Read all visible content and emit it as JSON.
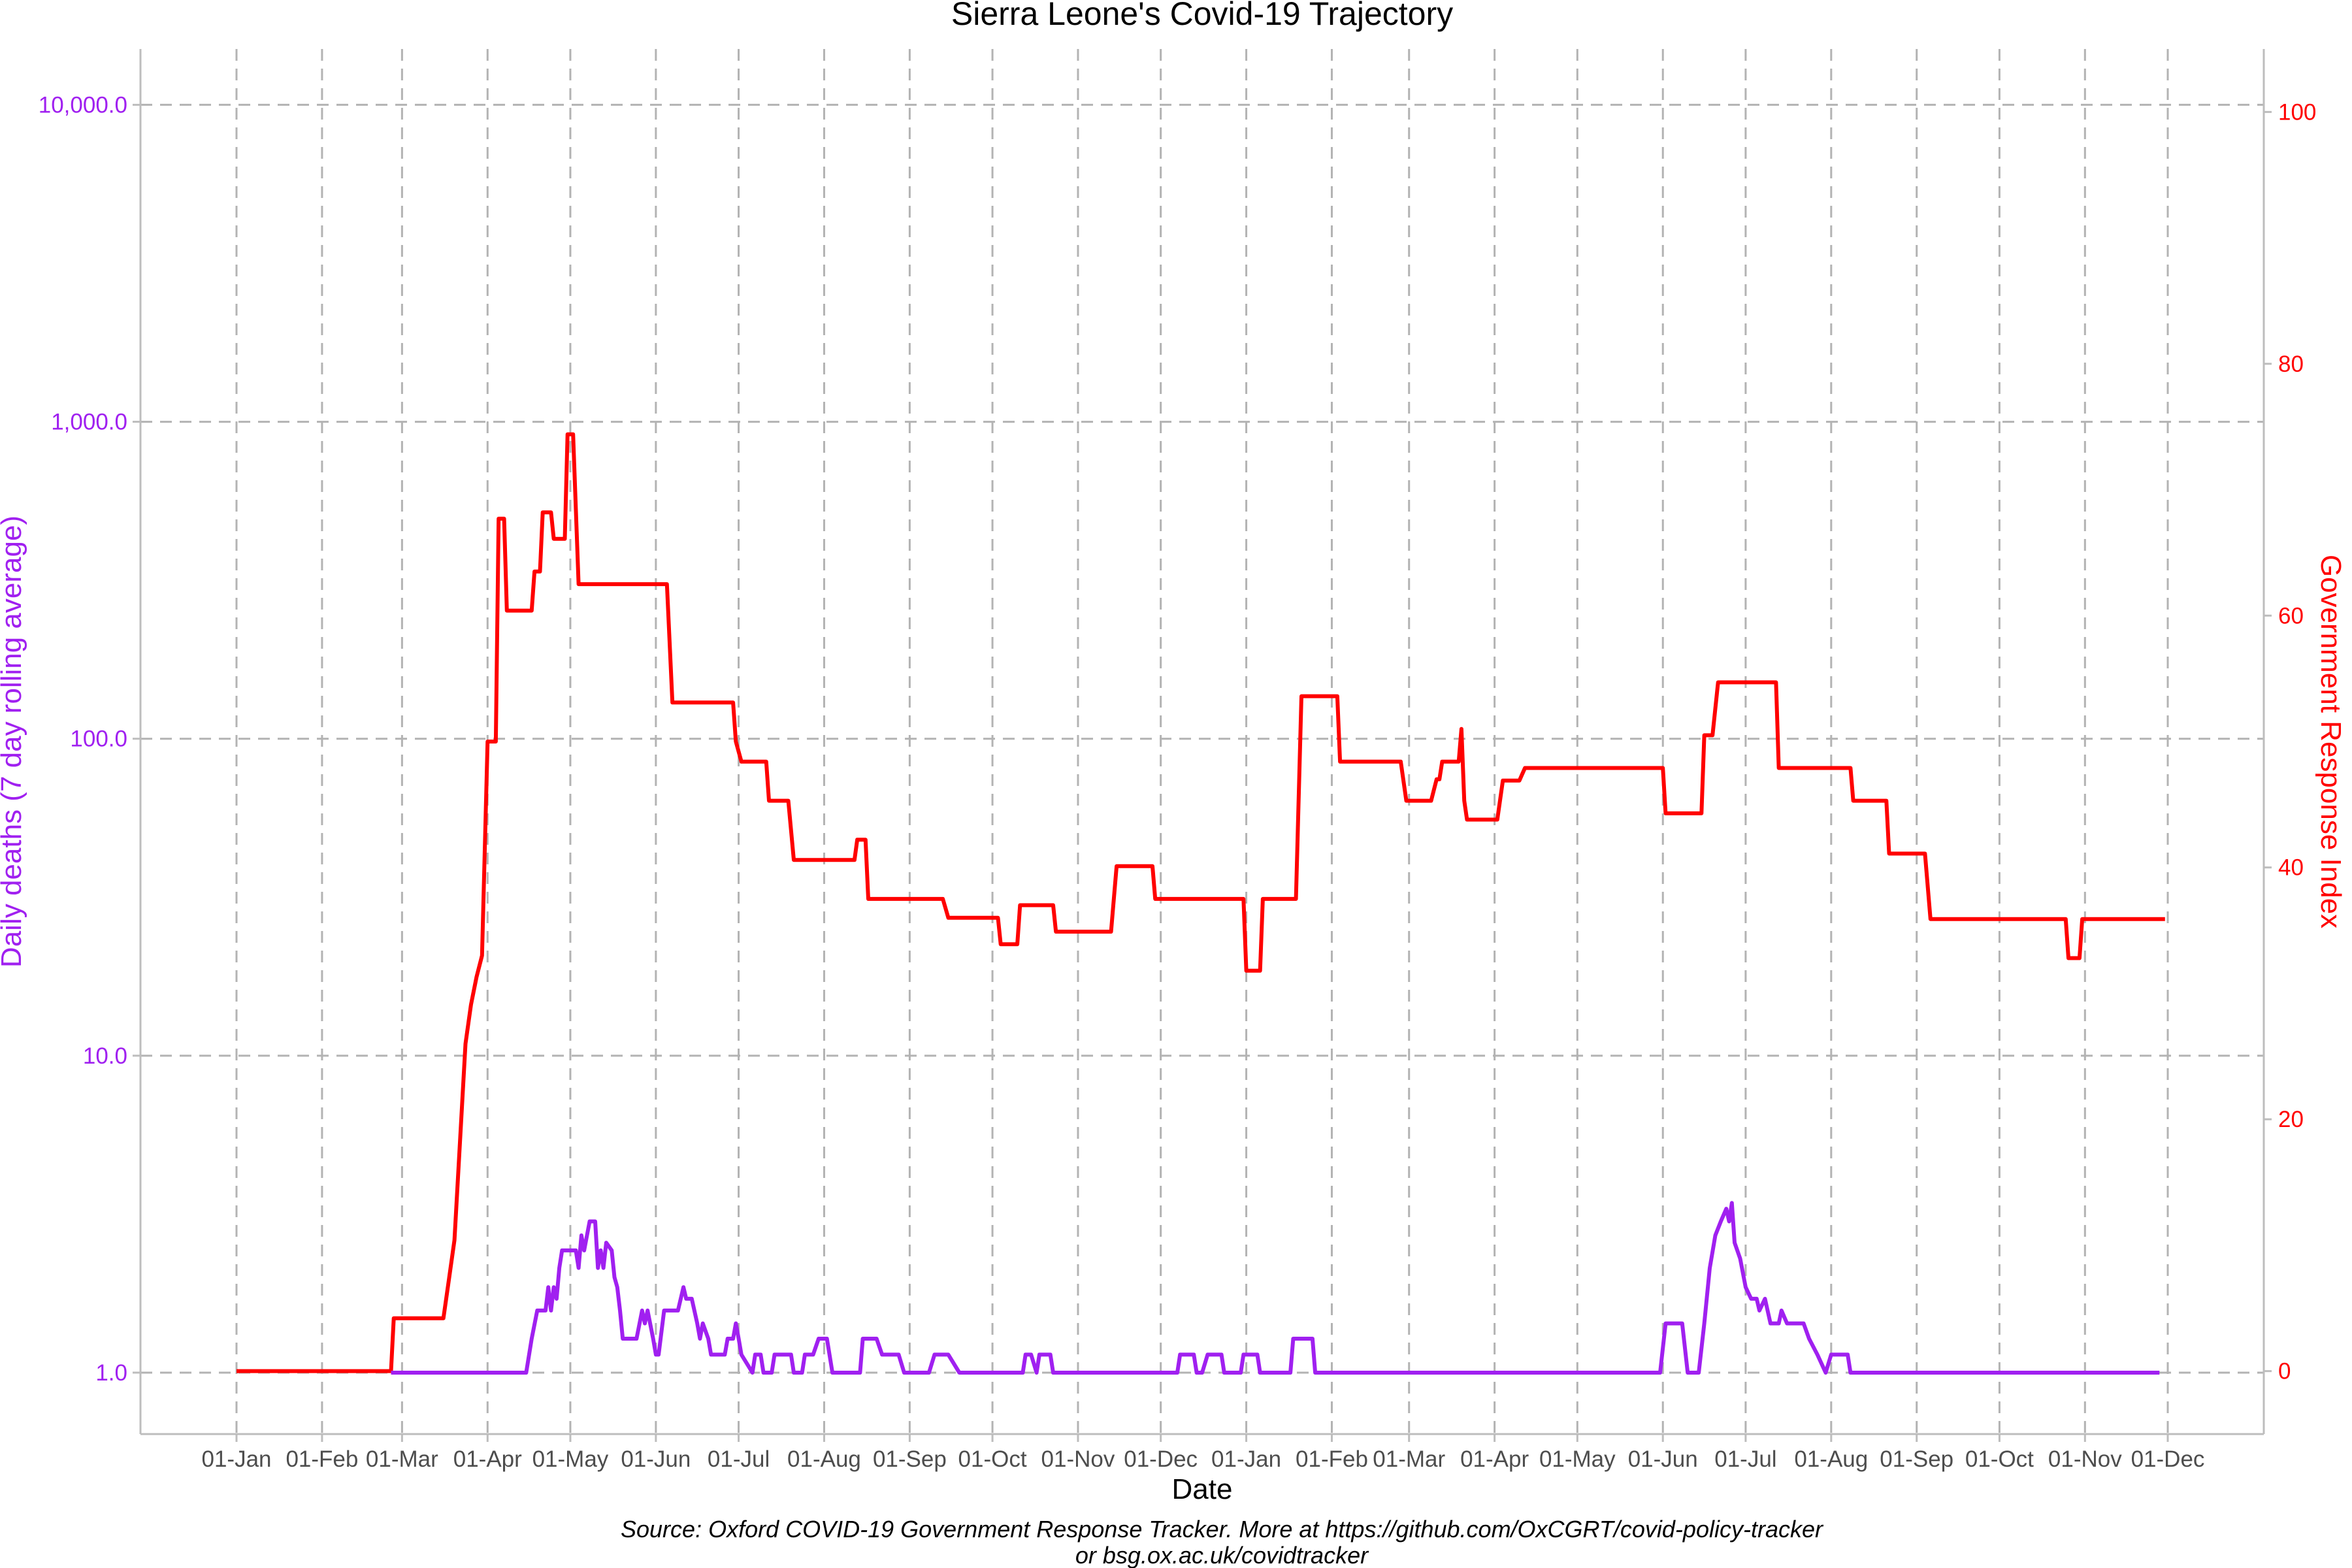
{
  "chart_data": {
    "type": "line",
    "title": "Sierra Leone's Covid-19 Trajectory",
    "xlabel": "Date",
    "ylabel_left": "Daily deaths (7 day rolling average)",
    "ylabel_right": "Government Response Index",
    "caption_line1": "Source: Oxford COVID-19 Government Response Tracker. More at https://github.com/OxCGRT/covid-policy-tracker",
    "caption_line2": "or bsg.ox.ac.uk/covidtracker",
    "x_range": [
      "2020-01-01",
      "2021-12-01"
    ],
    "x_ticks": [
      {
        "date": "2020-01-01",
        "label": "01-Jan"
      },
      {
        "date": "2020-02-01",
        "label": "01-Feb"
      },
      {
        "date": "2020-03-01",
        "label": "01-Mar"
      },
      {
        "date": "2020-04-01",
        "label": "01-Apr"
      },
      {
        "date": "2020-05-01",
        "label": "01-May"
      },
      {
        "date": "2020-06-01",
        "label": "01-Jun"
      },
      {
        "date": "2020-07-01",
        "label": "01-Jul"
      },
      {
        "date": "2020-08-01",
        "label": "01-Aug"
      },
      {
        "date": "2020-09-01",
        "label": "01-Sep"
      },
      {
        "date": "2020-10-01",
        "label": "01-Oct"
      },
      {
        "date": "2020-11-01",
        "label": "01-Nov"
      },
      {
        "date": "2020-12-01",
        "label": "01-Dec"
      },
      {
        "date": "2021-01-01",
        "label": "01-Jan"
      },
      {
        "date": "2021-02-01",
        "label": "01-Feb"
      },
      {
        "date": "2021-03-01",
        "label": "01-Mar"
      },
      {
        "date": "2021-04-01",
        "label": "01-Apr"
      },
      {
        "date": "2021-05-01",
        "label": "01-May"
      },
      {
        "date": "2021-06-01",
        "label": "01-Jun"
      },
      {
        "date": "2021-07-01",
        "label": "01-Jul"
      },
      {
        "date": "2021-08-01",
        "label": "01-Aug"
      },
      {
        "date": "2021-09-01",
        "label": "01-Sep"
      },
      {
        "date": "2021-10-01",
        "label": "01-Oct"
      },
      {
        "date": "2021-11-01",
        "label": "01-Nov"
      },
      {
        "date": "2021-12-01",
        "label": "01-Dec"
      }
    ],
    "y_left": {
      "scale": "log10",
      "range": [
        0.64,
        15000
      ],
      "ticks": [
        {
          "value": 1,
          "label": "1.0"
        },
        {
          "value": 10,
          "label": "10.0"
        },
        {
          "value": 100,
          "label": "100.0"
        },
        {
          "value": 1000,
          "label": "1,000.0"
        },
        {
          "value": 10000,
          "label": "10,000.0"
        }
      ],
      "color": "#a020f0"
    },
    "y_right": {
      "scale": "linear",
      "range": [
        -5,
        105
      ],
      "ticks": [
        0,
        20,
        40,
        60,
        80,
        100
      ],
      "color": "#ff0000"
    },
    "grid": true,
    "series": [
      {
        "axis": "right",
        "color": "#ff0000",
        "points": [
          [
            "2020-01-01",
            0
          ],
          [
            "2020-02-26",
            0
          ],
          [
            "2020-02-27",
            4.2
          ],
          [
            "2020-03-16",
            4.2
          ],
          [
            "2020-03-18",
            7.3
          ],
          [
            "2020-03-20",
            10.4
          ],
          [
            "2020-03-24",
            26.0
          ],
          [
            "2020-03-26",
            29.1
          ],
          [
            "2020-03-28",
            31.3
          ],
          [
            "2020-03-30",
            33.0
          ],
          [
            "2020-04-01",
            50.0
          ],
          [
            "2020-04-04",
            50.0
          ],
          [
            "2020-04-05",
            67.7
          ],
          [
            "2020-04-07",
            67.7
          ],
          [
            "2020-04-08",
            60.4
          ],
          [
            "2020-04-17",
            60.4
          ],
          [
            "2020-04-18",
            63.5
          ],
          [
            "2020-04-20",
            63.5
          ],
          [
            "2020-04-21",
            68.2
          ],
          [
            "2020-04-24",
            68.2
          ],
          [
            "2020-04-25",
            66.1
          ],
          [
            "2020-04-29",
            66.1
          ],
          [
            "2020-04-30",
            74.4
          ],
          [
            "2020-05-02",
            74.4
          ],
          [
            "2020-05-04",
            62.5
          ],
          [
            "2020-06-05",
            62.5
          ],
          [
            "2020-06-07",
            53.1
          ],
          [
            "2020-06-29",
            53.1
          ],
          [
            "2020-06-30",
            50.0
          ],
          [
            "2020-07-02",
            48.4
          ],
          [
            "2020-07-11",
            48.4
          ],
          [
            "2020-07-12",
            45.3
          ],
          [
            "2020-07-19",
            45.3
          ],
          [
            "2020-07-21",
            40.6
          ],
          [
            "2020-08-12",
            40.6
          ],
          [
            "2020-08-13",
            42.2
          ],
          [
            "2020-08-16",
            42.2
          ],
          [
            "2020-08-17",
            37.5
          ],
          [
            "2020-09-13",
            37.5
          ],
          [
            "2020-09-15",
            36.0
          ],
          [
            "2020-10-03",
            36.0
          ],
          [
            "2020-10-04",
            33.9
          ],
          [
            "2020-10-10",
            33.9
          ],
          [
            "2020-10-11",
            37.0
          ],
          [
            "2020-10-23",
            37.0
          ],
          [
            "2020-10-24",
            34.9
          ],
          [
            "2020-11-13",
            34.9
          ],
          [
            "2020-11-15",
            40.1
          ],
          [
            "2020-11-28",
            40.1
          ],
          [
            "2020-11-29",
            37.5
          ],
          [
            "2020-12-31",
            37.5
          ],
          [
            "2021-01-01",
            31.8
          ],
          [
            "2021-01-06",
            31.8
          ],
          [
            "2021-01-07",
            37.5
          ],
          [
            "2021-01-19",
            37.5
          ],
          [
            "2021-01-21",
            53.6
          ],
          [
            "2021-02-03",
            53.6
          ],
          [
            "2021-02-04",
            48.4
          ],
          [
            "2021-02-26",
            48.4
          ],
          [
            "2021-02-28",
            45.3
          ],
          [
            "2021-03-09",
            45.3
          ],
          [
            "2021-03-11",
            47.0
          ],
          [
            "2021-03-12",
            47.0
          ],
          [
            "2021-03-13",
            48.4
          ],
          [
            "2021-03-19",
            48.4
          ],
          [
            "2021-03-20",
            51.0
          ],
          [
            "2021-03-21",
            45.3
          ],
          [
            "2021-03-22",
            43.8
          ],
          [
            "2021-04-02",
            43.8
          ],
          [
            "2021-04-04",
            46.9
          ],
          [
            "2021-04-10",
            46.9
          ],
          [
            "2021-04-12",
            47.9
          ],
          [
            "2021-06-01",
            47.9
          ],
          [
            "2021-06-02",
            44.3
          ],
          [
            "2021-06-15",
            44.3
          ],
          [
            "2021-06-16",
            50.5
          ],
          [
            "2021-06-19",
            50.5
          ],
          [
            "2021-06-21",
            54.7
          ],
          [
            "2021-07-12",
            54.7
          ],
          [
            "2021-07-13",
            47.9
          ],
          [
            "2021-08-08",
            47.9
          ],
          [
            "2021-08-09",
            45.3
          ],
          [
            "2021-08-21",
            45.3
          ],
          [
            "2021-08-22",
            41.1
          ],
          [
            "2021-09-04",
            41.1
          ],
          [
            "2021-09-06",
            35.9
          ],
          [
            "2021-10-25",
            35.9
          ],
          [
            "2021-10-26",
            32.8
          ],
          [
            "2021-10-30",
            32.8
          ],
          [
            "2021-10-31",
            35.9
          ],
          [
            "2021-11-30",
            35.9
          ]
        ]
      },
      {
        "axis": "left",
        "color": "#a020f0",
        "points": [
          [
            "2020-02-26",
            1.0
          ],
          [
            "2020-04-15",
            1.0
          ],
          [
            "2020-04-17",
            1.28
          ],
          [
            "2020-04-19",
            1.57
          ],
          [
            "2020-04-22",
            1.57
          ],
          [
            "2020-04-23",
            1.86
          ],
          [
            "2020-04-24",
            1.57
          ],
          [
            "2020-04-25",
            1.86
          ],
          [
            "2020-04-26",
            1.71
          ],
          [
            "2020-04-27",
            2.14
          ],
          [
            "2020-04-28",
            2.43
          ],
          [
            "2020-04-30",
            2.43
          ],
          [
            "2020-05-01",
            2.43
          ],
          [
            "2020-05-03",
            2.43
          ],
          [
            "2020-05-04",
            2.14
          ],
          [
            "2020-05-05",
            2.71
          ],
          [
            "2020-05-06",
            2.43
          ],
          [
            "2020-05-08",
            3.0
          ],
          [
            "2020-05-10",
            3.0
          ],
          [
            "2020-05-11",
            2.14
          ],
          [
            "2020-05-12",
            2.43
          ],
          [
            "2020-05-13",
            2.14
          ],
          [
            "2020-05-14",
            2.57
          ],
          [
            "2020-05-16",
            2.43
          ],
          [
            "2020-05-17",
            2.0
          ],
          [
            "2020-05-18",
            1.86
          ],
          [
            "2020-05-19",
            1.57
          ],
          [
            "2020-05-20",
            1.28
          ],
          [
            "2020-05-25",
            1.28
          ],
          [
            "2020-05-27",
            1.57
          ],
          [
            "2020-05-28",
            1.43
          ],
          [
            "2020-05-29",
            1.57
          ],
          [
            "2020-05-31",
            1.28
          ],
          [
            "2020-06-01",
            1.14
          ],
          [
            "2020-06-02",
            1.14
          ],
          [
            "2020-06-04",
            1.57
          ],
          [
            "2020-06-09",
            1.57
          ],
          [
            "2020-06-11",
            1.86
          ],
          [
            "2020-06-12",
            1.71
          ],
          [
            "2020-06-14",
            1.71
          ],
          [
            "2020-06-16",
            1.43
          ],
          [
            "2020-06-17",
            1.28
          ],
          [
            "2020-06-18",
            1.43
          ],
          [
            "2020-06-20",
            1.28
          ],
          [
            "2020-06-21",
            1.14
          ],
          [
            "2020-06-26",
            1.14
          ],
          [
            "2020-06-27",
            1.28
          ],
          [
            "2020-06-29",
            1.28
          ],
          [
            "2020-06-30",
            1.43
          ],
          [
            "2020-07-01",
            1.28
          ],
          [
            "2020-07-02",
            1.14
          ],
          [
            "2020-07-06",
            1.0
          ],
          [
            "2020-07-07",
            1.14
          ],
          [
            "2020-07-09",
            1.14
          ],
          [
            "2020-07-10",
            1.0
          ],
          [
            "2020-07-13",
            1.0
          ],
          [
            "2020-07-14",
            1.14
          ],
          [
            "2020-07-20",
            1.14
          ],
          [
            "2020-07-21",
            1.0
          ],
          [
            "2020-07-24",
            1.0
          ],
          [
            "2020-07-25",
            1.14
          ],
          [
            "2020-07-28",
            1.14
          ],
          [
            "2020-07-30",
            1.28
          ],
          [
            "2020-08-02",
            1.28
          ],
          [
            "2020-08-04",
            1.0
          ],
          [
            "2020-08-14",
            1.0
          ],
          [
            "2020-08-15",
            1.28
          ],
          [
            "2020-08-20",
            1.28
          ],
          [
            "2020-08-22",
            1.14
          ],
          [
            "2020-08-27",
            1.14
          ],
          [
            "2020-08-28",
            1.14
          ],
          [
            "2020-08-30",
            1.0
          ],
          [
            "2020-09-08",
            1.0
          ],
          [
            "2020-09-10",
            1.14
          ],
          [
            "2020-09-12",
            1.14
          ],
          [
            "2020-09-15",
            1.14
          ],
          [
            "2020-09-19",
            1.0
          ],
          [
            "2020-10-12",
            1.0
          ],
          [
            "2020-10-13",
            1.14
          ],
          [
            "2020-10-15",
            1.14
          ],
          [
            "2020-10-17",
            1.0
          ],
          [
            "2020-10-18",
            1.14
          ],
          [
            "2020-10-22",
            1.14
          ],
          [
            "2020-10-23",
            1.0
          ],
          [
            "2020-12-07",
            1.0
          ],
          [
            "2020-12-08",
            1.14
          ],
          [
            "2020-12-13",
            1.14
          ],
          [
            "2020-12-14",
            1.0
          ],
          [
            "2020-12-16",
            1.0
          ],
          [
            "2020-12-18",
            1.14
          ],
          [
            "2020-12-23",
            1.14
          ],
          [
            "2020-12-24",
            1.0
          ],
          [
            "2020-12-30",
            1.0
          ],
          [
            "2020-12-31",
            1.14
          ],
          [
            "2021-01-05",
            1.14
          ],
          [
            "2021-01-06",
            1.0
          ],
          [
            "2021-01-17",
            1.0
          ],
          [
            "2021-01-18",
            1.28
          ],
          [
            "2021-01-25",
            1.28
          ],
          [
            "2021-01-26",
            1.0
          ],
          [
            "2021-05-31",
            1.0
          ],
          [
            "2021-06-02",
            1.43
          ],
          [
            "2021-06-08",
            1.43
          ],
          [
            "2021-06-10",
            1.0
          ],
          [
            "2021-06-14",
            1.0
          ],
          [
            "2021-06-16",
            1.43
          ],
          [
            "2021-06-18",
            2.14
          ],
          [
            "2021-06-20",
            2.71
          ],
          [
            "2021-06-22",
            3.0
          ],
          [
            "2021-06-24",
            3.29
          ],
          [
            "2021-06-25",
            3.0
          ],
          [
            "2021-06-26",
            3.43
          ],
          [
            "2021-06-27",
            2.57
          ],
          [
            "2021-06-29",
            2.29
          ],
          [
            "2021-07-01",
            1.86
          ],
          [
            "2021-07-03",
            1.71
          ],
          [
            "2021-07-05",
            1.71
          ],
          [
            "2021-07-06",
            1.57
          ],
          [
            "2021-07-08",
            1.71
          ],
          [
            "2021-07-10",
            1.43
          ],
          [
            "2021-07-13",
            1.43
          ],
          [
            "2021-07-14",
            1.57
          ],
          [
            "2021-07-16",
            1.43
          ],
          [
            "2021-07-22",
            1.43
          ],
          [
            "2021-07-24",
            1.28
          ],
          [
            "2021-07-27",
            1.14
          ],
          [
            "2021-07-30",
            1.0
          ],
          [
            "2021-08-01",
            1.14
          ],
          [
            "2021-08-07",
            1.14
          ],
          [
            "2021-08-08",
            1.0
          ],
          [
            "2021-11-28",
            1.0
          ]
        ]
      }
    ]
  }
}
